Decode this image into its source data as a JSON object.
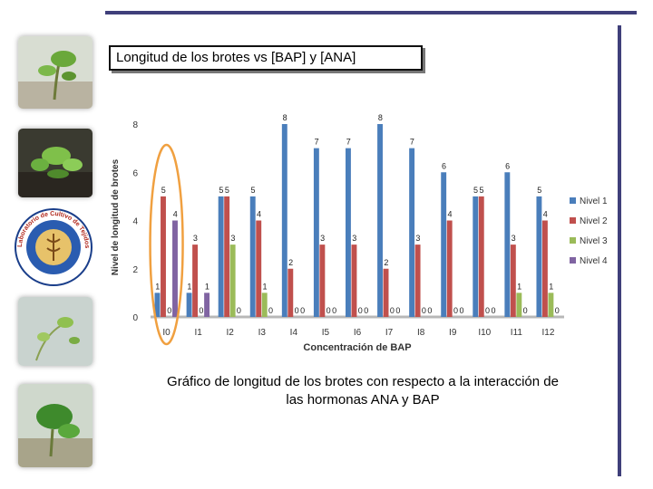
{
  "slide": {
    "title": "Longitud de los brotes vs [BAP] y [ANA]",
    "caption_line1": "Gráfico de longitud de los brotes con respecto a la interacción de",
    "caption_line2": "las hormonas ANA y BAP",
    "logo_text": "Laboratorio de Cultivo de Tejidos · INGENIERIA EN BIOTECNOLOGIA"
  },
  "colors": {
    "Nivel 1": "#4a7ebb",
    "Nivel 2": "#c0504d",
    "Nivel 3": "#9bbb59",
    "Nivel 4": "#8064a2",
    "highlight": "#f0a040",
    "frame": "#3f3f7a"
  },
  "chart_data": {
    "type": "bar",
    "xlabel": "Concentración de BAP",
    "ylabel": "Nivel de longitud de brotes",
    "ylim": [
      0,
      8
    ],
    "yticks": [
      0,
      2,
      4,
      6,
      8
    ],
    "legend_position": "right",
    "grid": false,
    "categories": [
      "I0",
      "I1",
      "I2",
      "I3",
      "I4",
      "I5",
      "I6",
      "I7",
      "I8",
      "I9",
      "I10",
      "I11",
      "I12"
    ],
    "series": [
      {
        "name": "Nivel 1",
        "values": [
          1,
          1,
          5,
          5,
          8,
          7,
          7,
          8,
          7,
          6,
          5,
          6,
          5
        ]
      },
      {
        "name": "Nivel 2",
        "values": [
          5,
          3,
          5,
          4,
          2,
          3,
          3,
          2,
          3,
          4,
          5,
          3,
          4
        ]
      },
      {
        "name": "Nivel 3",
        "values": [
          0,
          0,
          3,
          1,
          0,
          0,
          0,
          0,
          0,
          0,
          0,
          1,
          1
        ]
      },
      {
        "name": "Nivel 4",
        "values": [
          4,
          1,
          0,
          0,
          0,
          0,
          0,
          0,
          0,
          0,
          0,
          0,
          0
        ]
      }
    ],
    "highlighted_category": "I0"
  }
}
